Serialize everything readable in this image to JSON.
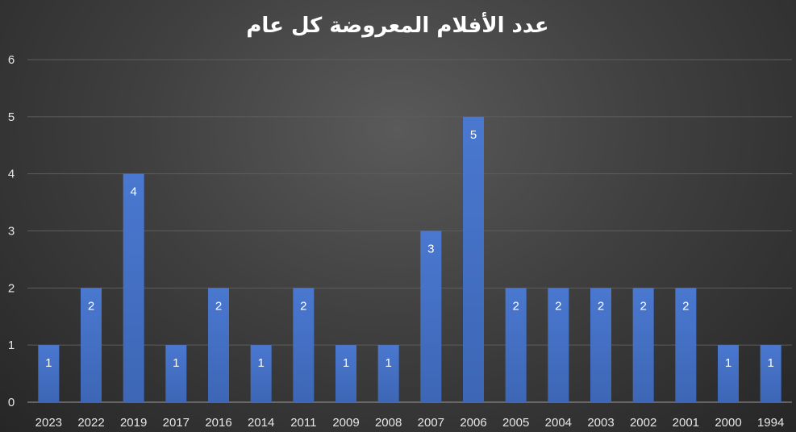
{
  "chart_data": {
    "type": "bar",
    "title": "عدد الأفلام المعروضة كل عام",
    "xlabel": "",
    "ylabel": "",
    "categories": [
      "2023",
      "2022",
      "2019",
      "2017",
      "2016",
      "2014",
      "2011",
      "2009",
      "2008",
      "2007",
      "2006",
      "2005",
      "2004",
      "2003",
      "2002",
      "2001",
      "2000",
      "1994"
    ],
    "values": [
      1,
      2,
      4,
      1,
      2,
      1,
      2,
      1,
      1,
      3,
      5,
      2,
      2,
      2,
      2,
      2,
      1,
      1
    ],
    "ylim": [
      0,
      6
    ],
    "yticks": [
      0,
      1,
      2,
      3,
      4,
      5,
      6
    ],
    "grid": true,
    "data_labels": true,
    "bar_color": "#4472c4",
    "legend": "none"
  }
}
